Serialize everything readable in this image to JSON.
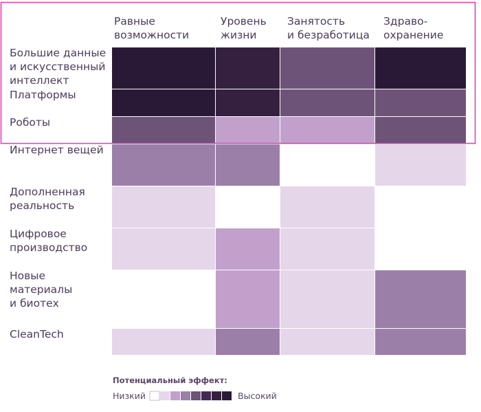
{
  "chart_data": {
    "type": "heatmap",
    "columns": [
      [
        "Равные",
        "возможности"
      ],
      [
        "Уровень",
        "жизни"
      ],
      [
        "Занятость",
        "и безработица"
      ],
      [
        "Здраво-",
        "охранение"
      ]
    ],
    "rows": [
      [
        "Большие данные",
        "и искусственный",
        "интеллект"
      ],
      [
        "Платформы"
      ],
      [
        "Роботы"
      ],
      [
        "Интернет вещей"
      ],
      [
        "Дополненная",
        "реальность"
      ],
      [
        "Цифровое",
        "производство"
      ],
      [
        "Новые",
        "материалы",
        "и биотех"
      ],
      [
        "CleanTech"
      ]
    ],
    "values": [
      [
        7,
        6,
        4,
        7
      ],
      [
        7,
        6,
        4,
        4
      ],
      [
        4,
        2,
        2,
        4
      ],
      [
        3,
        3,
        0,
        1
      ],
      [
        1,
        0,
        1,
        0
      ],
      [
        1,
        2,
        1,
        0
      ],
      [
        0,
        2,
        1,
        3
      ],
      [
        1,
        3,
        1,
        3
      ]
    ],
    "scale": {
      "min": 0,
      "max": 7,
      "colors": [
        "#ffffff",
        "#e6d6ea",
        "#c1a1cb",
        "#9c7fa8",
        "#6e5379",
        "#432851",
        "#35203f",
        "#2a1936"
      ]
    },
    "highlighted_rows": [
      0,
      1,
      2
    ],
    "highlight_color": "#e040b8",
    "legend": {
      "title": "Потенциальный эффект:",
      "low_label": "Низкий",
      "high_label": "Высокий"
    }
  }
}
